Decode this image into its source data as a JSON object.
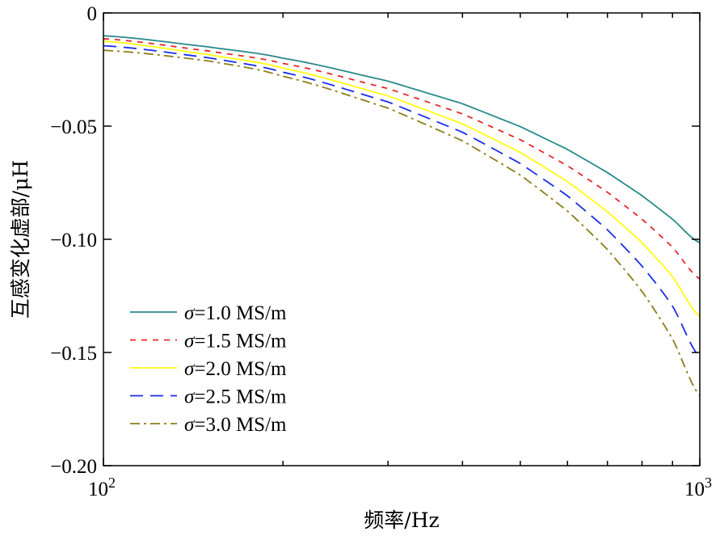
{
  "chart_data": {
    "type": "line",
    "title": "",
    "xlabel": "频率/Hz",
    "ylabel": "互感变化虚部/μH",
    "xscale": "log",
    "xlim": [
      100,
      1000
    ],
    "ylim": [
      -0.2,
      0
    ],
    "x_ticks": [
      {
        "base": "10",
        "exp": "2"
      },
      {
        "base": "10",
        "exp": "3"
      }
    ],
    "y_tick_labels": [
      "0",
      "−0.05",
      "−0.10",
      "−0.15",
      "−0.20"
    ],
    "y_tick_values": [
      0,
      -0.05,
      -0.1,
      -0.15,
      -0.2
    ],
    "grid": false,
    "legend_position": "lower-left",
    "x": [
      100,
      150,
      200,
      300,
      400,
      500,
      600,
      700,
      800,
      900,
      1000
    ],
    "series": [
      {
        "name": "σ=1.0 MS/m",
        "symbol": "σ",
        "rest": "=1.0 MS/m",
        "color": "#2a8a8a",
        "dash": "solid",
        "values": [
          -0.0101,
          -0.015,
          -0.02,
          -0.0301,
          -0.0401,
          -0.0502,
          -0.0603,
          -0.0705,
          -0.0807,
          -0.0911,
          -0.1015
        ]
      },
      {
        "name": "σ=1.5 MS/m",
        "symbol": "σ",
        "rest": "=1.5 MS/m",
        "color": "#e8262a",
        "dash": "dashed",
        "values": [
          -0.0114,
          -0.0168,
          -0.0223,
          -0.0334,
          -0.0446,
          -0.056,
          -0.0675,
          -0.0792,
          -0.0911,
          -0.1035,
          -0.1175
        ]
      },
      {
        "name": "σ=2.0 MS/m",
        "symbol": "σ",
        "rest": "=2.0 MS/m",
        "color": "#ffff10",
        "dash": "solid",
        "values": [
          -0.0125,
          -0.0184,
          -0.0244,
          -0.0366,
          -0.049,
          -0.0616,
          -0.0745,
          -0.0878,
          -0.1015,
          -0.1165,
          -0.134
        ]
      },
      {
        "name": "σ=2.5 MS/m",
        "symbol": "σ",
        "rest": "=2.5 MS/m",
        "color": "#1a2ee6",
        "dash": "longdash",
        "values": [
          -0.0145,
          -0.0198,
          -0.0262,
          -0.0393,
          -0.0527,
          -0.0665,
          -0.0808,
          -0.0958,
          -0.1118,
          -0.1295,
          -0.152
        ]
      },
      {
        "name": "σ=3.0 MS/m",
        "symbol": "σ",
        "rest": "=3.0 MS/m",
        "color": "#8c7d1a",
        "dash": "dashdot",
        "values": [
          -0.0165,
          -0.0212,
          -0.028,
          -0.042,
          -0.0565,
          -0.0716,
          -0.0875,
          -0.1045,
          -0.123,
          -0.144,
          -0.169
        ]
      }
    ]
  }
}
